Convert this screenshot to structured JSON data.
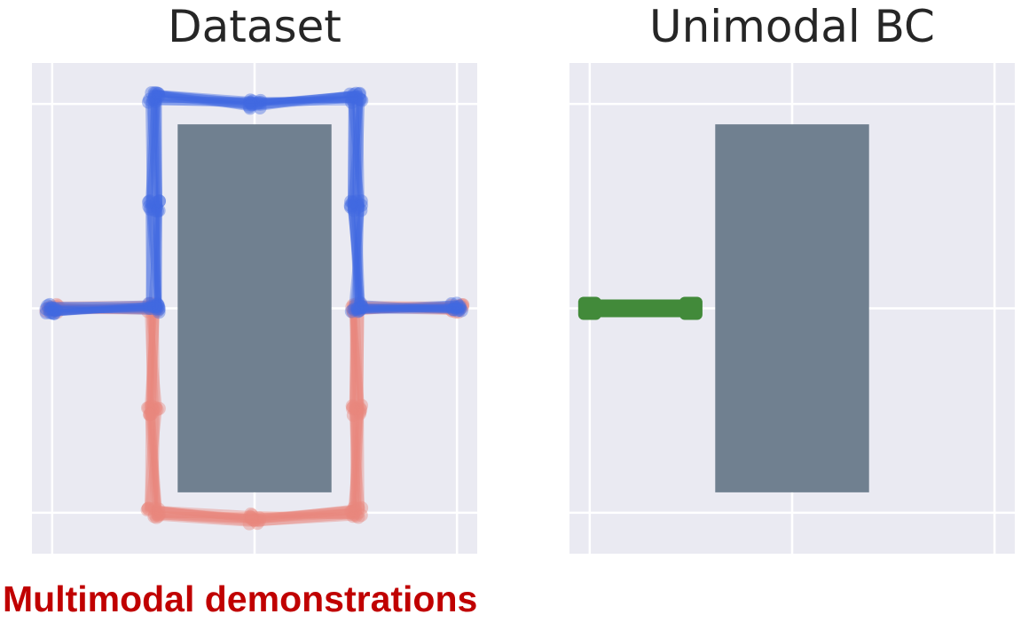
{
  "caption": "Multimodal demonstrations",
  "colors": {
    "plot_background": "#EAEAF2",
    "grid": "#FFFFFF",
    "obstacle": "#708090",
    "upper_route": "#4169E1",
    "lower_route": "#E8877E",
    "policy": "#428A3A",
    "caption": "#C00000"
  },
  "chart_data": [
    {
      "type": "line",
      "title": "Dataset",
      "xlim": [
        -1.1,
        1.1
      ],
      "ylim": [
        -1.2,
        1.2
      ],
      "grid": true,
      "ticks": [
        -1,
        0,
        1
      ],
      "obstacle": {
        "x0": -0.38,
        "x1": 0.38,
        "y0": -0.9,
        "y1": 0.9
      },
      "series": [
        {
          "route": "upper",
          "color": "#4169E1",
          "x": [
            -1.0,
            -0.5,
            -0.5,
            -0.5,
            0.0,
            0.5,
            0.5,
            0.5,
            1.0
          ],
          "y": [
            0.0,
            0.0,
            0.5,
            1.03,
            1.0,
            1.03,
            0.5,
            0.0,
            0.0
          ]
        },
        {
          "route": "lower",
          "color": "#E8877E",
          "x": [
            -1.0,
            -0.5,
            -0.5,
            -0.5,
            0.0,
            0.5,
            0.5,
            0.5,
            1.0
          ],
          "y": [
            0.0,
            0.0,
            -0.5,
            -1.0,
            -1.03,
            -1.0,
            -0.5,
            0.0,
            0.0
          ]
        }
      ]
    },
    {
      "type": "line",
      "title": "Unimodal BC",
      "xlim": [
        -1.1,
        1.1
      ],
      "ylim": [
        -1.2,
        1.2
      ],
      "grid": true,
      "ticks": [
        -1,
        0,
        1
      ],
      "obstacle": {
        "x0": -0.38,
        "x1": 0.38,
        "y0": -0.9,
        "y1": 0.9
      },
      "series": [
        {
          "route": "policy",
          "color": "#428A3A",
          "x": [
            -1.0,
            -0.5
          ],
          "y": [
            0.0,
            0.0
          ]
        }
      ]
    }
  ]
}
